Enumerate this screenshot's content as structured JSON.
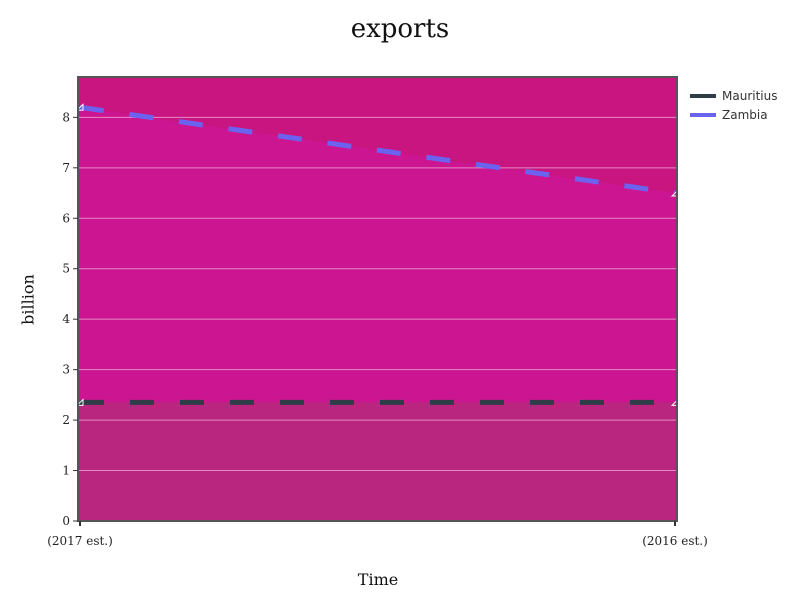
{
  "chart_data": {
    "type": "line",
    "title": "exports",
    "xlabel": "Time",
    "ylabel": "billion",
    "categories": [
      "(2017 est.)",
      "(2016 est.)"
    ],
    "ylim": [
      0,
      8.8
    ],
    "yticks": [
      0,
      1,
      2,
      3,
      4,
      5,
      6,
      7,
      8
    ],
    "grid": true,
    "legend_position": "top-right",
    "series": [
      {
        "name": "Mauritius",
        "values": [
          2.35,
          2.35
        ],
        "color": "#2f3e46",
        "style": "dashed",
        "fill": "#b8267f"
      },
      {
        "name": "Zambia",
        "values": [
          8.2,
          6.5
        ],
        "color": "#6b63f0",
        "style": "dashed",
        "fill": "#cc1590"
      }
    ],
    "colors": {
      "plot_background": "#c8157f",
      "grid": "#e58bc2",
      "frame": "#555555"
    }
  }
}
